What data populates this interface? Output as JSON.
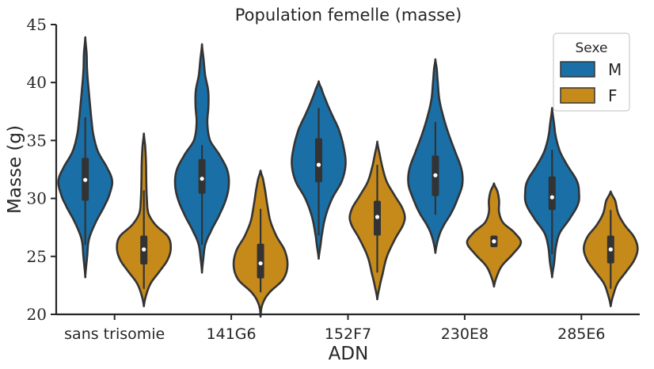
{
  "chart_data": {
    "type": "violin",
    "title": "Population femelle (masse)",
    "xlabel": "ADN",
    "ylabel": "Masse (g)",
    "ylim": [
      20,
      45
    ],
    "yticks": [
      20,
      25,
      30,
      35,
      40,
      45
    ],
    "categories": [
      "sans trisomie",
      "141G6",
      "152F7",
      "230E8",
      "285E6"
    ],
    "legend": {
      "title": "Sexe",
      "placement": "top-right"
    },
    "series": [
      {
        "name": "M",
        "color": "#1a6fa6",
        "groups": [
          {
            "min": 23.2,
            "max": 43.9,
            "median": 31.6,
            "q1": 29.8,
            "q3": 33.5,
            "wlow": 26.0,
            "whigh": 37.0,
            "shape": [
              [
                23.2,
                0
              ],
              [
                25,
                0.07
              ],
              [
                26.5,
                0.14
              ],
              [
                28,
                0.4
              ],
              [
                29.5,
                0.74
              ],
              [
                30.5,
                0.92
              ],
              [
                31.5,
                1.0
              ],
              [
                32.5,
                0.84
              ],
              [
                34,
                0.48
              ],
              [
                35.5,
                0.3
              ],
              [
                37,
                0.22
              ],
              [
                39,
                0.14
              ],
              [
                41,
                0.07
              ],
              [
                42.5,
                0.05
              ],
              [
                43.9,
                0
              ]
            ]
          },
          {
            "min": 23.6,
            "max": 43.3,
            "median": 31.7,
            "q1": 30.4,
            "q3": 33.4,
            "wlow": 26.0,
            "whigh": 34.6,
            "shape": [
              [
                23.6,
                0
              ],
              [
                24.8,
                0.05
              ],
              [
                26,
                0.12
              ],
              [
                27,
                0.3
              ],
              [
                28.5,
                0.63
              ],
              [
                30,
                0.9
              ],
              [
                31.3,
                1.0
              ],
              [
                32.5,
                0.93
              ],
              [
                33.8,
                0.64
              ],
              [
                35,
                0.3
              ],
              [
                36.5,
                0.2
              ],
              [
                38,
                0.24
              ],
              [
                39.3,
                0.23
              ],
              [
                40.6,
                0.12
              ],
              [
                42,
                0.06
              ],
              [
                43.3,
                0
              ]
            ]
          },
          {
            "min": 24.8,
            "max": 40.1,
            "median": 32.9,
            "q1": 31.4,
            "q3": 35.2,
            "wlow": 26.8,
            "whigh": 37.8,
            "shape": [
              [
                24.8,
                0
              ],
              [
                26,
                0.07
              ],
              [
                27,
                0.13
              ],
              [
                28.5,
                0.26
              ],
              [
                30,
                0.5
              ],
              [
                31.5,
                0.86
              ],
              [
                33,
                1.0
              ],
              [
                34.5,
                0.92
              ],
              [
                36,
                0.74
              ],
              [
                37.3,
                0.48
              ],
              [
                38.5,
                0.26
              ],
              [
                39.5,
                0.1
              ],
              [
                40.1,
                0
              ]
            ]
          },
          {
            "min": 25.3,
            "max": 42.0,
            "median": 32.0,
            "q1": 30.2,
            "q3": 33.7,
            "wlow": 28.6,
            "whigh": 36.6,
            "shape": [
              [
                25.3,
                0
              ],
              [
                26.5,
                0.1
              ],
              [
                27.5,
                0.27
              ],
              [
                28.8,
                0.6
              ],
              [
                30,
                0.83
              ],
              [
                31.2,
                1.0
              ],
              [
                32.5,
                0.97
              ],
              [
                34,
                0.74
              ],
              [
                35.5,
                0.5
              ],
              [
                37,
                0.3
              ],
              [
                38.5,
                0.15
              ],
              [
                40,
                0.09
              ],
              [
                41.2,
                0.05
              ],
              [
                42,
                0
              ]
            ]
          },
          {
            "min": 23.2,
            "max": 37.8,
            "median": 30.1,
            "q1": 29.0,
            "q3": 31.9,
            "wlow": 25.2,
            "whigh": 34.2,
            "shape": [
              [
                23.2,
                0
              ],
              [
                24.5,
                0.08
              ],
              [
                25.8,
                0.14
              ],
              [
                27,
                0.28
              ],
              [
                28.2,
                0.64
              ],
              [
                29.5,
                0.96
              ],
              [
                30.5,
                1.0
              ],
              [
                31.5,
                0.92
              ],
              [
                32.8,
                0.58
              ],
              [
                34,
                0.3
              ],
              [
                35.3,
                0.14
              ],
              [
                36.5,
                0.07
              ],
              [
                37.8,
                0
              ]
            ]
          }
        ]
      },
      {
        "name": "F",
        "color": "#c68a1b",
        "groups": [
          {
            "min": 20.7,
            "max": 35.6,
            "median": 25.6,
            "q1": 24.3,
            "q3": 26.8,
            "wlow": 22.2,
            "whigh": 30.7,
            "shape": [
              [
                20.7,
                0
              ],
              [
                21.7,
                0.09
              ],
              [
                22.7,
                0.26
              ],
              [
                23.7,
                0.58
              ],
              [
                24.7,
                0.88
              ],
              [
                25.7,
                1.0
              ],
              [
                26.7,
                0.9
              ],
              [
                27.7,
                0.44
              ],
              [
                28.7,
                0.17
              ],
              [
                30,
                0.11
              ],
              [
                31.5,
                0.09
              ],
              [
                33,
                0.08
              ],
              [
                34.5,
                0.05
              ],
              [
                35.6,
                0
              ]
            ]
          },
          {
            "min": 19.8,
            "max": 32.4,
            "median": 24.4,
            "q1": 23.1,
            "q3": 26.1,
            "wlow": 21.9,
            "whigh": 29.1,
            "shape": [
              [
                19.8,
                0
              ],
              [
                20.8,
                0.06
              ],
              [
                21.8,
                0.3
              ],
              [
                23,
                0.83
              ],
              [
                24.2,
                1.0
              ],
              [
                25.5,
                0.9
              ],
              [
                26.7,
                0.6
              ],
              [
                28,
                0.37
              ],
              [
                29.3,
                0.26
              ],
              [
                30.7,
                0.17
              ],
              [
                31.7,
                0.09
              ],
              [
                32.4,
                0
              ]
            ]
          },
          {
            "min": 21.3,
            "max": 34.9,
            "median": 28.4,
            "q1": 26.8,
            "q3": 29.8,
            "wlow": 23.6,
            "whigh": 32.9,
            "shape": [
              [
                21.3,
                0
              ],
              [
                22.3,
                0.08
              ],
              [
                23.5,
                0.2
              ],
              [
                25,
                0.36
              ],
              [
                26.5,
                0.66
              ],
              [
                28,
                1.0
              ],
              [
                29,
                0.96
              ],
              [
                30.2,
                0.66
              ],
              [
                31.4,
                0.36
              ],
              [
                32.6,
                0.2
              ],
              [
                33.8,
                0.09
              ],
              [
                34.9,
                0
              ]
            ]
          },
          {
            "min": 22.4,
            "max": 31.3,
            "median": 26.3,
            "q1": 25.8,
            "q3": 26.8,
            "wlow": 25.8,
            "whigh": 26.8,
            "shape": [
              [
                22.4,
                0
              ],
              [
                23.3,
                0.11
              ],
              [
                24.2,
                0.3
              ],
              [
                25.2,
                0.7
              ],
              [
                26.2,
                1.0
              ],
              [
                27.1,
                0.74
              ],
              [
                27.9,
                0.34
              ],
              [
                28.8,
                0.19
              ],
              [
                29.8,
                0.19
              ],
              [
                30.6,
                0.13
              ],
              [
                31.3,
                0
              ]
            ]
          },
          {
            "min": 20.7,
            "max": 30.6,
            "median": 25.6,
            "q1": 24.4,
            "q3": 26.8,
            "wlow": 22.2,
            "whigh": 29.0,
            "shape": [
              [
                20.7,
                0
              ],
              [
                21.7,
                0.1
              ],
              [
                22.7,
                0.26
              ],
              [
                23.7,
                0.58
              ],
              [
                24.7,
                0.88
              ],
              [
                25.7,
                1.0
              ],
              [
                26.7,
                0.86
              ],
              [
                27.7,
                0.52
              ],
              [
                28.7,
                0.28
              ],
              [
                29.8,
                0.17
              ],
              [
                30.6,
                0
              ]
            ]
          }
        ]
      }
    ]
  }
}
